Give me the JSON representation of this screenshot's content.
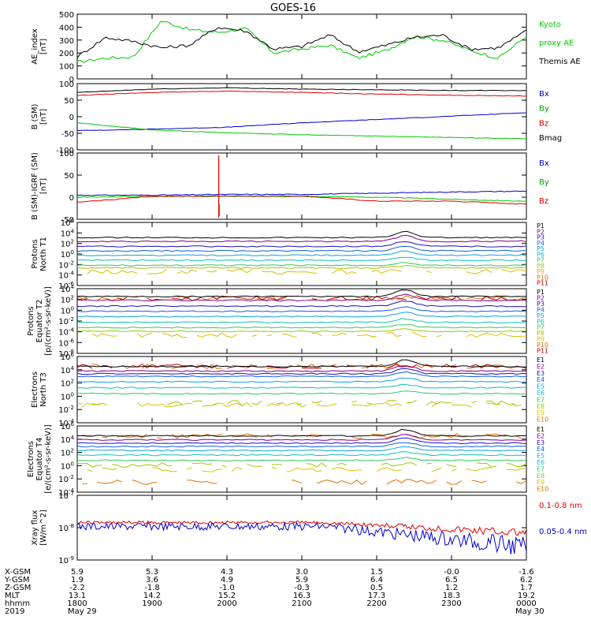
{
  "title": "GOES-16",
  "colors": {
    "black": "#000000",
    "red": "#e00000",
    "blue": "#0000d0",
    "green": "#00c800",
    "p": [
      "#000000",
      "#7f007f",
      "#2010c0",
      "#1060e0",
      "#10a0e0",
      "#10c0b0",
      "#30c860",
      "#a0c800",
      "#d8c000",
      "#e07000",
      "#d00000"
    ],
    "e": [
      "#000000",
      "#7f007f",
      "#2010c0",
      "#1060e0",
      "#10a0e0",
      "#10c0b0",
      "#30c860",
      "#a0c800",
      "#d8c000",
      "#e07000",
      "#d00000"
    ]
  },
  "panels": [
    {
      "id": "ae",
      "ylabel": [
        "AE_index",
        "[nT]"
      ],
      "yticks": [
        "0",
        "100",
        "200",
        "300",
        "400",
        "500"
      ],
      "legend": [
        {
          "text": "Kyoto",
          "color": "#00c800"
        },
        {
          "text": "proxy AE",
          "color": "#00c800"
        },
        {
          "text": "Themis AE",
          "color": "#000000"
        }
      ]
    },
    {
      "id": "bsm",
      "ylabel": [
        "B (SM)",
        "[nT]"
      ],
      "yticks": [
        "-100",
        "-50",
        "0",
        "50",
        "100"
      ],
      "legend": [
        {
          "text": "Bx",
          "color": "#0000d0"
        },
        {
          "text": "By",
          "color": "#00a000"
        },
        {
          "text": "Bz",
          "color": "#d00000"
        },
        {
          "text": "Bmag",
          "color": "#000000"
        }
      ]
    },
    {
      "id": "bigrf",
      "ylabel": [
        "B (SM)-IGRF (SM)",
        "[nT]"
      ],
      "yticks": [
        "-50",
        "0",
        "50",
        "100"
      ],
      "legend": [
        {
          "text": "Bx",
          "color": "#0000d0"
        },
        {
          "text": "By",
          "color": "#00a000"
        },
        {
          "text": "Bz",
          "color": "#d00000"
        }
      ]
    },
    {
      "id": "pt1",
      "ylabel": [
        "Protons",
        "North T1"
      ],
      "yticks": [
        "10^-6",
        "10^-4",
        "10^-2",
        "10^0",
        "10^2",
        "10^4",
        "10^6"
      ],
      "legend": [
        {
          "text": "P1"
        },
        {
          "text": "P2"
        },
        {
          "text": "P3"
        },
        {
          "text": "P4"
        },
        {
          "text": "P5"
        },
        {
          "text": "P6"
        },
        {
          "text": "P7"
        },
        {
          "text": "P8"
        },
        {
          "text": "P9"
        },
        {
          "text": "P10"
        },
        {
          "text": "P11"
        }
      ]
    },
    {
      "id": "pt2",
      "ylabel": [
        "Protons",
        "Equator T2",
        "[p/(cm²-s-sr-keV)]"
      ],
      "yticks": [
        "10^-8",
        "10^-6",
        "10^-4",
        "10^-2",
        "10^0",
        "10^2",
        "10^4"
      ],
      "legend": [
        {
          "text": "P1"
        },
        {
          "text": "P2"
        },
        {
          "text": "P3"
        },
        {
          "text": "P4"
        },
        {
          "text": "P5"
        },
        {
          "text": "P6"
        },
        {
          "text": "P7"
        },
        {
          "text": "P8"
        },
        {
          "text": "P9"
        },
        {
          "text": "P10"
        },
        {
          "text": "P11"
        }
      ]
    },
    {
      "id": "et3",
      "ylabel": [
        "Electrons",
        "North T3"
      ],
      "yticks": [
        "10^-4",
        "10^-2",
        "10^0",
        "10^2",
        "10^4",
        "10^6"
      ],
      "legend": [
        {
          "text": "E1"
        },
        {
          "text": "E2"
        },
        {
          "text": "E3"
        },
        {
          "text": "E4"
        },
        {
          "text": "E5"
        },
        {
          "text": "E6"
        },
        {
          "text": "E7"
        },
        {
          "text": "E8"
        },
        {
          "text": "E9"
        },
        {
          "text": "E10"
        }
      ]
    },
    {
      "id": "et4",
      "ylabel": [
        "Electrons",
        "Equator T4",
        "[e/(cm²-s-sr-keV)]"
      ],
      "yticks": [
        "10^-4",
        "10^-2",
        "10^0",
        "10^2",
        "10^4",
        "10^6"
      ],
      "legend": [
        {
          "text": "E1"
        },
        {
          "text": "E2"
        },
        {
          "text": "E3"
        },
        {
          "text": "E4"
        },
        {
          "text": "E5"
        },
        {
          "text": "E6"
        },
        {
          "text": "E7"
        },
        {
          "text": "E8"
        },
        {
          "text": "E9"
        },
        {
          "text": "E10"
        }
      ]
    },
    {
      "id": "xray",
      "ylabel": [
        "Xray flux",
        "[W/m^2]"
      ],
      "yticks": [
        "10^-9",
        "10^-8",
        "10^-7"
      ],
      "legend": [
        {
          "text": "0.1-0.8 nm",
          "color": "#e00000"
        },
        {
          "text": "0.05-0.4 nm",
          "color": "#0000d0"
        }
      ]
    }
  ],
  "footer": {
    "rows": [
      {
        "label": "X-GSM",
        "values": [
          "5.9",
          "5.3",
          "4.3",
          "3.0",
          "1.5",
          "-0.0",
          "-1.6"
        ]
      },
      {
        "label": "Y-GSM",
        "values": [
          "1.9",
          "3.6",
          "4.9",
          "5.9",
          "6.4",
          "6.5",
          "6.2"
        ]
      },
      {
        "label": "Z-GSM",
        "values": [
          "-2.2",
          "-1.8",
          "-1.0",
          "-0.3",
          "0.5",
          "1.2",
          "1.7"
        ]
      },
      {
        "label": "MLT",
        "values": [
          "13.1",
          "14.2",
          "15.2",
          "16.3",
          "17.3",
          "18.3",
          "19.2"
        ]
      },
      {
        "label": "hhmm",
        "values": [
          "1800",
          "1900",
          "2000",
          "2100",
          "2200",
          "2300",
          "0000"
        ]
      }
    ],
    "year": "2019",
    "date_start": "May 29",
    "date_end": "May 30"
  },
  "chart_data": [
    {
      "type": "line",
      "title": "GOES-16",
      "ylabel": "AE_index [nT]",
      "ylim": [
        0,
        500
      ],
      "x": [
        "1800",
        "1830",
        "1900",
        "1915",
        "1930",
        "2000",
        "2015",
        "2030",
        "2045",
        "2100",
        "2115",
        "2130",
        "2200",
        "2230",
        "2300",
        "2330",
        "0000"
      ],
      "series": [
        {
          "name": "Kyoto proxy AE",
          "values": [
            130,
            160,
            170,
            450,
            380,
            360,
            390,
            200,
            230,
            260,
            160,
            220,
            330,
            300,
            220,
            160,
            330
          ]
        },
        {
          "name": "Themis AE",
          "values": [
            170,
            320,
            290,
            240,
            260,
            400,
            370,
            230,
            250,
            340,
            210,
            260,
            320,
            340,
            230,
            240,
            370
          ]
        }
      ]
    },
    {
      "type": "line",
      "ylabel": "B (SM) [nT]",
      "ylim": [
        -110,
        130
      ],
      "x": [
        "1800",
        "1900",
        "2000",
        "2100",
        "2200",
        "2300",
        "0000"
      ],
      "series": [
        {
          "name": "Bx",
          "values": [
            -40,
            -35,
            -28,
            -12,
            0,
            12,
            25
          ]
        },
        {
          "name": "By",
          "values": [
            -12,
            -38,
            -48,
            -55,
            -60,
            -65,
            -70
          ]
        },
        {
          "name": "Bz",
          "values": [
            87,
            98,
            103,
            98,
            92,
            88,
            85
          ]
        },
        {
          "name": "Bmag",
          "values": [
            98,
            110,
            115,
            110,
            108,
            105,
            105
          ]
        }
      ]
    },
    {
      "type": "line",
      "ylabel": "B (SM)-IGRF (SM) [nT]",
      "ylim": [
        -60,
        105
      ],
      "x": [
        "1800",
        "1900",
        "2000",
        "2100",
        "2200",
        "2300",
        "0000"
      ],
      "series": [
        {
          "name": "Bx",
          "values": [
            0,
            0,
            2,
            2,
            5,
            8,
            10
          ]
        },
        {
          "name": "By",
          "values": [
            -5,
            -3,
            -3,
            -3,
            -5,
            -10,
            -15
          ]
        },
        {
          "name": "Bz",
          "values": [
            -18,
            -3,
            -2,
            -2,
            -15,
            -15,
            -22
          ]
        }
      ]
    }
  ]
}
